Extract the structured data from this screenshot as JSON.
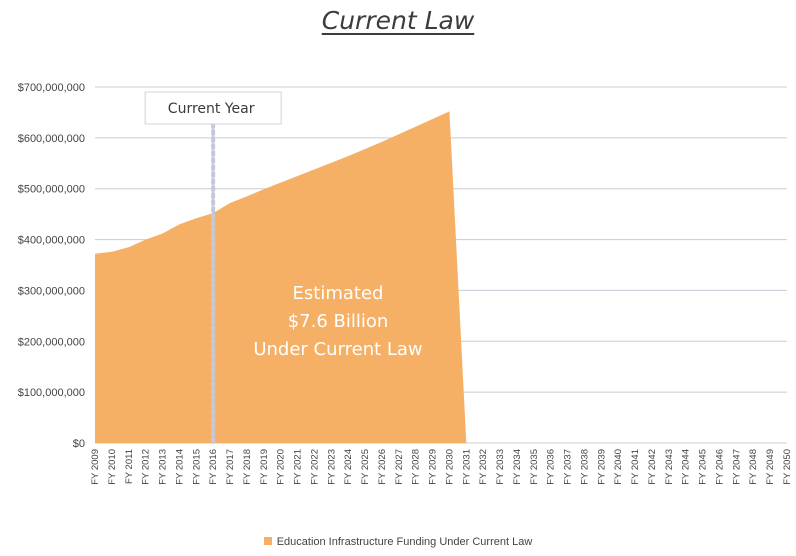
{
  "page": {
    "title": "Current Law"
  },
  "chart_data": {
    "type": "area",
    "title": "Current Law",
    "xlabel": "",
    "ylabel": "",
    "ylim": [
      0,
      700000000
    ],
    "y_ticks": [
      "$0",
      "$100,000,000",
      "$200,000,000",
      "$300,000,000",
      "$400,000,000",
      "$500,000,000",
      "$600,000,000",
      "$700,000,000"
    ],
    "y_tick_values": [
      0,
      100000000,
      200000000,
      300000000,
      400000000,
      500000000,
      600000000,
      700000000
    ],
    "grid": true,
    "legend_placement": "bottom",
    "categories": [
      "FY 2009",
      "FY 2010",
      "FY 2011",
      "FY 2012",
      "FY 2013",
      "FY 2014",
      "FY 2015",
      "FY 2016",
      "FY 2017",
      "FY 2018",
      "FY 2019",
      "FY 2020",
      "FY 2021",
      "FY 2022",
      "FY 2023",
      "FY 2024",
      "FY 2025",
      "FY 2026",
      "FY 2027",
      "FY 2028",
      "FY 2029",
      "FY 2030",
      "FY 2031",
      "FY 2032",
      "FY 2033",
      "FY 2034",
      "FY 2035",
      "FY 2036",
      "FY 2037",
      "FY 2038",
      "FY 2039",
      "FY 2040",
      "FY 2041",
      "FY 2042",
      "FY 2043",
      "FY 2044",
      "FY 2045",
      "FY 2046",
      "FY 2047",
      "FY 2048",
      "FY 2049",
      "FY 2050"
    ],
    "series": [
      {
        "name": "Education Infrastructure Funding Under Current Law",
        "color": "#f5b066",
        "values": [
          372000000,
          376000000,
          385000000,
          400000000,
          412000000,
          430000000,
          442000000,
          452000000,
          472000000,
          485000000,
          499000000,
          512000000,
          525000000,
          538000000,
          551000000,
          564000000,
          578000000,
          592000000,
          607000000,
          622000000,
          637000000,
          652000000,
          0,
          null,
          null,
          null,
          null,
          null,
          null,
          null,
          null,
          null,
          null,
          null,
          null,
          null,
          null,
          null,
          null,
          null,
          null,
          null
        ]
      }
    ],
    "annotations": {
      "current_year": {
        "label": "Current Year",
        "x": "FY 2016",
        "line_color": "#c3c9d8"
      },
      "area_label": [
        "Estimated",
        "$7.6 Billion",
        "Under Current Law"
      ]
    }
  }
}
